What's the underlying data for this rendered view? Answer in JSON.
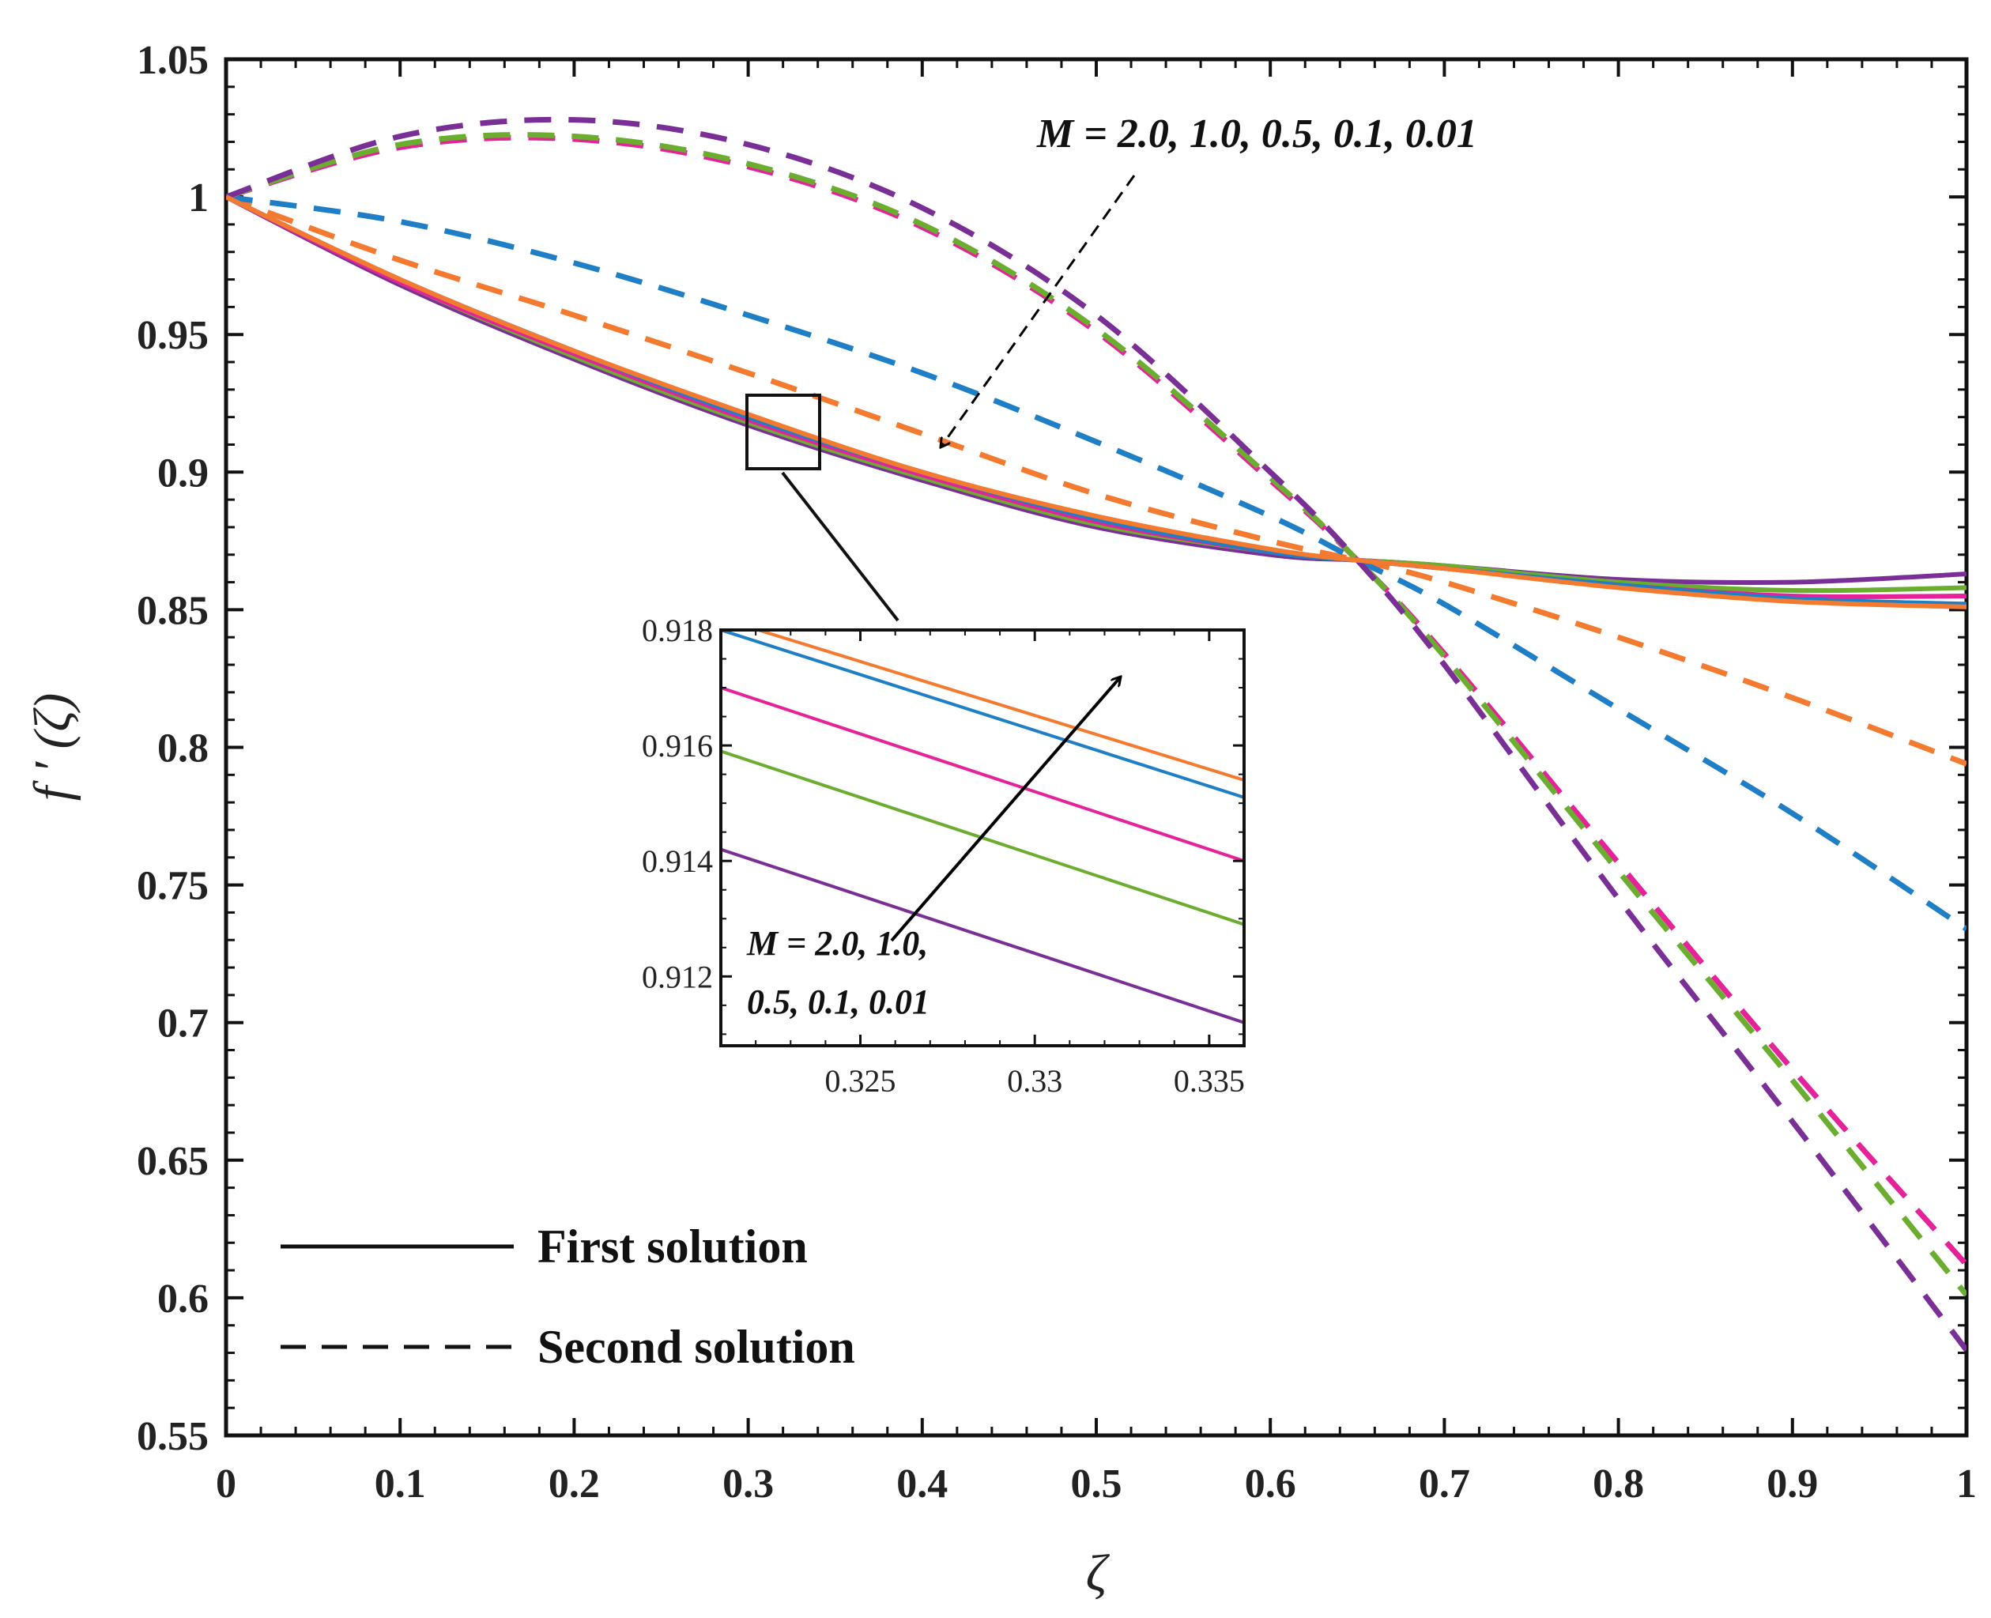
{
  "chart_data": {
    "type": "line",
    "xlabel": "ζ",
    "ylabel": "f ′ (ζ)",
    "xlim": [
      0,
      1
    ],
    "ylim": [
      0.55,
      1.05
    ],
    "x_ticks": [
      "0",
      "0.1",
      "0.2",
      "0.3",
      "0.4",
      "0.5",
      "0.6",
      "0.7",
      "0.8",
      "0.9",
      "1"
    ],
    "y_ticks": [
      "0.55",
      "0.6",
      "0.65",
      "0.7",
      "0.75",
      "0.8",
      "0.85",
      "0.9",
      "0.95",
      "1",
      "1.05"
    ],
    "annotation": "M = 2.0, 1.0, 0.5, 0.1, 0.01",
    "legend": {
      "placement": "bottom-left",
      "first": "First solution",
      "second": "Second solution"
    },
    "colors": [
      "#f47a30",
      "#1f7fc6",
      "#e6229b",
      "#6aad2f",
      "#7a2f96"
    ],
    "x": [
      0,
      0.1,
      0.2,
      0.3,
      0.4,
      0.5,
      0.6,
      0.65,
      0.7,
      0.8,
      0.9,
      1.0
    ],
    "first_solution": [
      {
        "color_index": 0,
        "y": [
          1.0,
          0.97,
          0.944,
          0.921,
          0.9,
          0.884,
          0.872,
          0.868,
          0.865,
          0.858,
          0.853,
          0.851
        ]
      },
      {
        "color_index": 1,
        "y": [
          1.0,
          0.97,
          0.944,
          0.92,
          0.9,
          0.883,
          0.871,
          0.868,
          0.865,
          0.859,
          0.854,
          0.852
        ]
      },
      {
        "color_index": 2,
        "y": [
          1.0,
          0.969,
          0.943,
          0.919,
          0.899,
          0.882,
          0.871,
          0.868,
          0.865,
          0.859,
          0.855,
          0.855
        ]
      },
      {
        "color_index": 3,
        "y": [
          1.0,
          0.969,
          0.942,
          0.918,
          0.898,
          0.881,
          0.871,
          0.868,
          0.866,
          0.86,
          0.857,
          0.858
        ]
      },
      {
        "color_index": 4,
        "y": [
          1.0,
          0.968,
          0.941,
          0.917,
          0.897,
          0.88,
          0.87,
          0.868,
          0.866,
          0.861,
          0.86,
          0.863
        ]
      }
    ],
    "second_solution": [
      {
        "color_index": 0,
        "y": [
          1.0,
          0.977,
          0.957,
          0.936,
          0.914,
          0.892,
          0.875,
          0.868,
          0.86,
          0.84,
          0.818,
          0.794
        ]
      },
      {
        "color_index": 1,
        "y": [
          1.0,
          0.991,
          0.976,
          0.957,
          0.936,
          0.911,
          0.884,
          0.868,
          0.852,
          0.814,
          0.776,
          0.734
        ]
      },
      {
        "color_index": 2,
        "y": [
          1.0,
          1.018,
          1.021,
          1.011,
          0.989,
          0.951,
          0.897,
          0.868,
          0.834,
          0.758,
          0.683,
          0.612
        ]
      },
      {
        "color_index": 3,
        "y": [
          1.0,
          1.019,
          1.022,
          1.012,
          0.99,
          0.952,
          0.898,
          0.868,
          0.833,
          0.755,
          0.679,
          0.601
        ]
      },
      {
        "color_index": 4,
        "y": [
          1.0,
          1.022,
          1.028,
          1.019,
          0.996,
          0.957,
          0.9,
          0.868,
          0.83,
          0.745,
          0.664,
          0.581
        ]
      }
    ],
    "inset": {
      "xlim": [
        0.321,
        0.336
      ],
      "ylim": [
        0.9108,
        0.918
      ],
      "x_ticks": [
        "0.325",
        "0.33",
        "0.335"
      ],
      "y_ticks": [
        "0.912",
        "0.914",
        "0.916",
        "0.918"
      ],
      "annotation_line1": "M = 2.0, 1.0,",
      "annotation_line2": "0.5, 0.1, 0.01",
      "series": [
        {
          "color_index": 0,
          "x": [
            0.321,
            0.336
          ],
          "y": [
            0.9182,
            0.9154
          ]
        },
        {
          "color_index": 1,
          "x": [
            0.321,
            0.336
          ],
          "y": [
            0.918,
            0.9151
          ]
        },
        {
          "color_index": 2,
          "x": [
            0.321,
            0.336
          ],
          "y": [
            0.917,
            0.914
          ]
        },
        {
          "color_index": 3,
          "x": [
            0.321,
            0.336
          ],
          "y": [
            0.9159,
            0.9129
          ]
        },
        {
          "color_index": 4,
          "x": [
            0.321,
            0.336
          ],
          "y": [
            0.9142,
            0.9112
          ]
        }
      ]
    }
  }
}
